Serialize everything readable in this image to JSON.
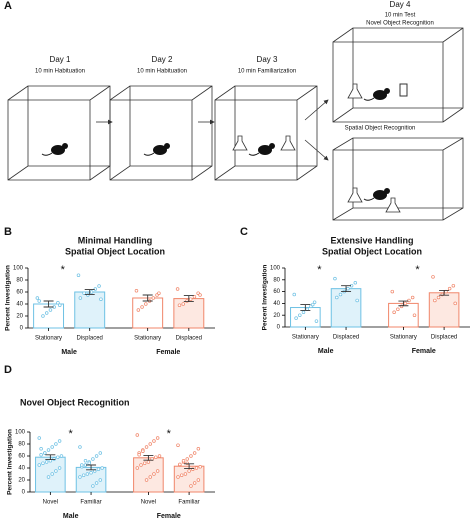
{
  "panel_labels": [
    "A",
    "B",
    "C",
    "D"
  ],
  "diagram": {
    "days": [
      {
        "title": "Day 1",
        "subtitle": "10 min Habituation"
      },
      {
        "title": "Day 2",
        "subtitle": "10 min Habituation"
      },
      {
        "title": "Day 3",
        "subtitle": "10 min Familiarization"
      }
    ],
    "day4": {
      "title": "Day 4",
      "subtitle": "10 min Test",
      "tests": [
        "Novel Object Recognition",
        "Spatial Object Recognition"
      ]
    }
  },
  "chart_data": [
    {
      "type": "bar",
      "title": "Minimal Handling",
      "subtitle": "Spatial Object Location",
      "ylabel": "Percent Investigation",
      "categories": [
        "Stationary",
        "Displaced",
        "Stationary",
        "Displaced"
      ],
      "groups": [
        "Male",
        "Female"
      ],
      "values": [
        40,
        60,
        50,
        49
      ],
      "errors": [
        5,
        4,
        5,
        5
      ],
      "colors": [
        "#6ec1e4",
        "#6ec1e4",
        "#f0866a",
        "#f0866a"
      ],
      "fills": [
        "#ffffff",
        "#dff2fa",
        "#ffffff",
        "#fde8e1"
      ],
      "points": [
        [
          50,
          42,
          35,
          30,
          25,
          20,
          45,
          38
        ],
        [
          88,
          70,
          65,
          60,
          55,
          58,
          50,
          48
        ],
        [
          62,
          55,
          50,
          45,
          40,
          35,
          30,
          58
        ],
        [
          65,
          58,
          52,
          48,
          45,
          40,
          38,
          55
        ]
      ],
      "annotations": [
        "*"
      ],
      "ylim": [
        0,
        100
      ],
      "yticks": [
        0,
        20,
        40,
        60,
        80,
        100
      ]
    },
    {
      "type": "bar",
      "title": "Extensive Handling",
      "subtitle": "Spatial Object Location",
      "ylabel": "Percent Investigation",
      "categories": [
        "Stationary",
        "Displaced",
        "Stationary",
        "Displaced"
      ],
      "groups": [
        "Male",
        "Female"
      ],
      "values": [
        33,
        65,
        40,
        58
      ],
      "errors": [
        5,
        5,
        4,
        4
      ],
      "colors": [
        "#6ec1e4",
        "#6ec1e4",
        "#f0866a",
        "#f0866a"
      ],
      "fills": [
        "#ffffff",
        "#dff2fa",
        "#ffffff",
        "#fde8e1"
      ],
      "points": [
        [
          55,
          42,
          35,
          30,
          25,
          20,
          15,
          10,
          38
        ],
        [
          82,
          75,
          70,
          65,
          60,
          55,
          50,
          45
        ],
        [
          60,
          50,
          45,
          40,
          35,
          30,
          25,
          20
        ],
        [
          85,
          70,
          65,
          60,
          55,
          50,
          45,
          40
        ]
      ],
      "annotations": [
        "*",
        "*"
      ],
      "ylim": [
        0,
        100
      ],
      "yticks": [
        0,
        20,
        40,
        60,
        80,
        100
      ]
    },
    {
      "type": "bar",
      "title": "Novel Object Recognition",
      "ylabel": "Percent Investigation",
      "categories": [
        "Novel",
        "Familiar",
        "Novel",
        "Familiar"
      ],
      "groups": [
        "Male",
        "Female"
      ],
      "values": [
        58,
        41,
        57,
        43
      ],
      "errors": [
        4,
        4,
        4,
        4
      ],
      "colors": [
        "#6ec1e4",
        "#6ec1e4",
        "#f0866a",
        "#f0866a"
      ],
      "fills": [
        "#dff2fa",
        "#dff2fa",
        "#fde8e1",
        "#fde8e1"
      ],
      "points": [
        [
          90,
          85,
          80,
          75,
          70,
          65,
          62,
          60,
          58,
          55,
          52,
          50,
          48,
          45,
          40,
          35,
          30,
          25,
          65,
          72
        ],
        [
          75,
          65,
          60,
          55,
          50,
          45,
          42,
          40,
          38,
          35,
          32,
          30,
          28,
          25,
          20,
          15,
          10,
          48,
          52,
          45
        ],
        [
          95,
          90,
          85,
          80,
          75,
          70,
          65,
          60,
          58,
          55,
          50,
          48,
          45,
          40,
          35,
          30,
          25,
          20,
          68,
          62
        ],
        [
          78,
          72,
          65,
          60,
          55,
          50,
          45,
          42,
          40,
          38,
          35,
          30,
          28,
          25,
          20,
          15,
          10,
          48,
          52,
          46
        ]
      ],
      "annotations": [
        "*",
        "*"
      ],
      "ylim": [
        0,
        100
      ],
      "yticks": [
        0,
        20,
        40,
        60,
        80,
        100
      ]
    }
  ]
}
